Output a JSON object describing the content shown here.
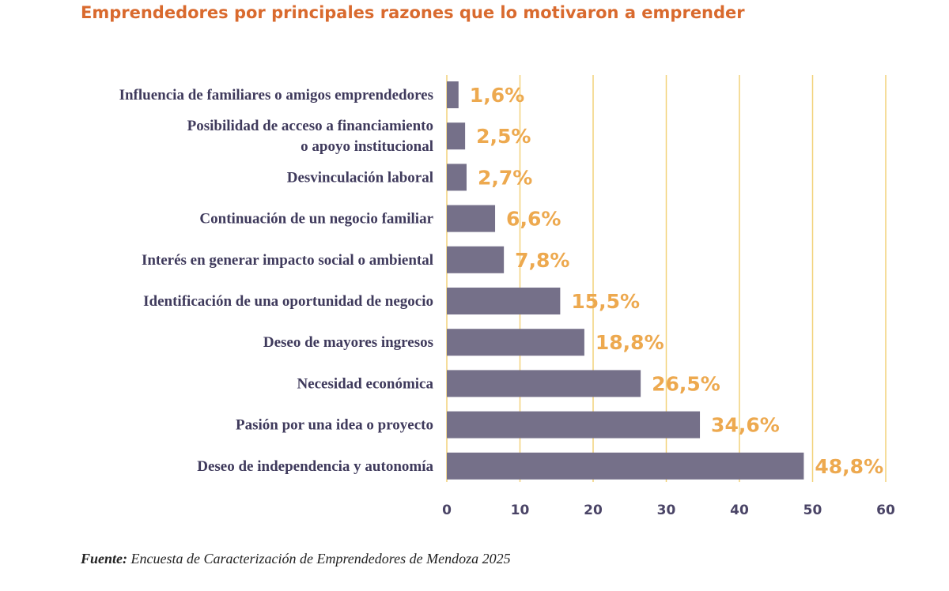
{
  "chart_data": {
    "type": "bar",
    "orientation": "horizontal",
    "title": "Emprendedores por principales razones que lo motivaron a emprender",
    "categories": [
      [
        "Influencia de familiares o amigos emprendedores"
      ],
      [
        "Posibilidad de acceso a financiamiento",
        "o apoyo institucional"
      ],
      [
        "Desvinculación laboral"
      ],
      [
        "Continuación de un negocio familiar"
      ],
      [
        "Interés en generar impacto social o ambiental"
      ],
      [
        "Identificación de una oportunidad de negocio"
      ],
      [
        "Deseo de mayores ingresos"
      ],
      [
        "Necesidad económica"
      ],
      [
        "Pasión por una idea o proyecto"
      ],
      [
        "Deseo de independencia y autonomía"
      ]
    ],
    "values": [
      1.6,
      2.5,
      2.7,
      6.6,
      7.8,
      15.5,
      18.8,
      26.5,
      34.6,
      48.8
    ],
    "value_labels": [
      "1,6%",
      "2,5%",
      "2,7%",
      "6,6%",
      "7,8%",
      "15,5%",
      "18,8%",
      "26,5%",
      "34,6%",
      "48,8%"
    ],
    "xticks": [
      "0",
      "10",
      "20",
      "30",
      "40",
      "50",
      "60"
    ],
    "xlim": [
      0,
      60
    ],
    "grid": true,
    "colors": {
      "bar": "#757089",
      "grid": "#f2d27a",
      "value_label": "#eda94f",
      "title": "#d96a2e"
    }
  },
  "source": {
    "label": "Fuente:",
    "text": "Encuesta de Caracterización de Emprendedores de Mendoza 2025"
  }
}
